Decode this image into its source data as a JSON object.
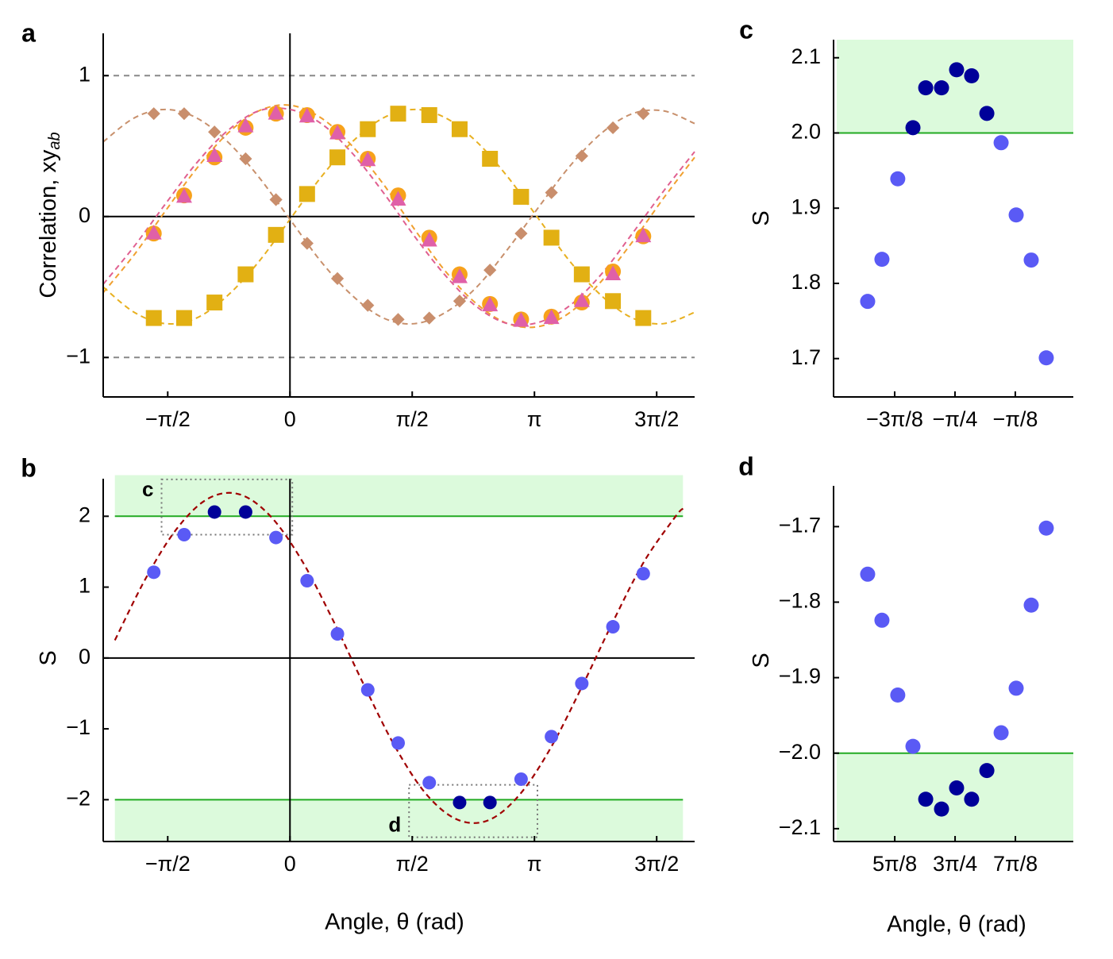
{
  "chart_data": [
    {
      "type": "scatter",
      "label": "a",
      "ylabel": "Correlation, xy",
      "ylabel_subscript": "ab",
      "xlim": [
        -2.4,
        5.2
      ],
      "ylim": [
        -1.28,
        1.3
      ],
      "xticks": [
        {
          "value": -1.5708,
          "label": "−π/2"
        },
        0,
        {
          "value": 1.5708,
          "label": "π/2"
        },
        {
          "value": 3.1416,
          "label": "π"
        },
        {
          "value": 4.7124,
          "label": "3π/2"
        }
      ],
      "yticks": [
        {
          "value": -1,
          "label": "−1"
        },
        0,
        1
      ],
      "zero_lines": true,
      "hlines": [
        {
          "y": 1,
          "color": "#888888",
          "dashed": true
        },
        {
          "y": -1,
          "color": "#888888",
          "dashed": true
        }
      ],
      "x": [
        -1.75,
        -1.36,
        -0.97,
        -0.57,
        -0.18,
        0.22,
        0.61,
        1.0,
        1.39,
        1.79,
        2.18,
        2.57,
        2.97,
        3.36,
        3.75,
        4.15,
        4.54
      ],
      "series": [
        {
          "marker": "circle",
          "color": "#f7a21b",
          "values": [
            -0.12,
            0.15,
            0.42,
            0.63,
            0.73,
            0.72,
            0.6,
            0.41,
            0.15,
            -0.15,
            -0.41,
            -0.62,
            -0.73,
            -0.71,
            -0.61,
            -0.39,
            -0.14
          ]
        },
        {
          "marker": "triangle",
          "color": "#e060a8",
          "values": [
            -0.12,
            0.14,
            0.43,
            0.64,
            0.73,
            0.71,
            0.59,
            0.4,
            0.12,
            -0.17,
            -0.43,
            -0.63,
            -0.74,
            -0.72,
            -0.6,
            -0.41,
            -0.14
          ]
        },
        {
          "marker": "square",
          "color": "#e2b013",
          "values": [
            -0.72,
            -0.72,
            -0.61,
            -0.41,
            -0.13,
            0.16,
            0.42,
            0.62,
            0.73,
            0.72,
            0.62,
            0.41,
            0.14,
            -0.15,
            -0.41,
            -0.6,
            -0.72
          ]
        },
        {
          "marker": "diamond",
          "color": "#c98e6c",
          "values": [
            0.73,
            0.73,
            0.6,
            0.41,
            0.12,
            -0.19,
            -0.44,
            -0.63,
            -0.73,
            -0.72,
            -0.6,
            -0.38,
            -0.12,
            0.17,
            0.43,
            0.63,
            0.73
          ]
        }
      ],
      "fit_x": [
        -2.4,
        -2.0,
        -1.6,
        -1.2,
        -0.8,
        -0.4,
        0,
        0.4,
        0.8,
        1.2,
        1.6,
        2.0,
        2.4,
        2.8,
        3.2,
        3.6,
        4.0,
        4.4,
        4.8,
        5.2
      ],
      "fits": [
        {
          "color": "#f0a030",
          "values": [
            -0.54,
            -0.27,
            0.04,
            0.34,
            0.59,
            0.75,
            0.79,
            0.7,
            0.5,
            0.23,
            -0.09,
            -0.39,
            -0.62,
            -0.76,
            -0.78,
            -0.68,
            -0.46,
            -0.18,
            0.13,
            0.42
          ]
        },
        {
          "color": "#e06090",
          "values": [
            -0.48,
            -0.21,
            0.09,
            0.38,
            0.61,
            0.75,
            0.76,
            0.66,
            0.45,
            0.17,
            -0.14,
            -0.42,
            -0.64,
            -0.76,
            -0.75,
            -0.63,
            -0.41,
            -0.12,
            0.18,
            0.46
          ]
        },
        {
          "color": "#e8b020",
          "values": [
            -0.5,
            -0.68,
            -0.76,
            -0.72,
            -0.56,
            -0.32,
            -0.02,
            0.28,
            0.53,
            0.7,
            0.76,
            0.7,
            0.53,
            0.28,
            -0.02,
            -0.32,
            -0.56,
            -0.72,
            -0.76,
            -0.68
          ]
        },
        {
          "color": "#c8906c",
          "values": [
            0.53,
            0.7,
            0.76,
            0.7,
            0.53,
            0.28,
            -0.02,
            -0.32,
            -0.56,
            -0.72,
            -0.76,
            -0.68,
            -0.5,
            -0.23,
            0.07,
            0.36,
            0.59,
            0.73,
            0.75,
            0.66
          ]
        }
      ]
    },
    {
      "type": "scatter",
      "label": "b",
      "ylabel": "S",
      "xlabel": "Angle, θ (rad)",
      "xlim": [
        -2.4,
        5.2
      ],
      "ylim": [
        -2.59,
        2.53
      ],
      "xticks": [
        {
          "value": -1.5708,
          "label": "−π/2"
        },
        0,
        {
          "value": 1.5708,
          "label": "π/2"
        },
        {
          "value": 3.1416,
          "label": "π"
        },
        {
          "value": 4.7124,
          "label": "3π/2"
        }
      ],
      "yticks": [
        {
          "value": -2,
          "label": "−2"
        },
        {
          "value": -1,
          "label": "−1"
        },
        0,
        1,
        2
      ],
      "zero_lines": true,
      "bands": [
        {
          "color": "#dcfadc",
          "x": [
            -2.25,
            5.05
          ],
          "y": [
            2,
            2.58
          ]
        },
        {
          "color": "#dcfadc",
          "x": [
            -2.25,
            5.05
          ],
          "y": [
            -2.6,
            -2
          ]
        }
      ],
      "hlines": [
        {
          "y": 2,
          "color": "#22aa22",
          "dashed": false,
          "x": [
            -2.25,
            5.05
          ]
        },
        {
          "y": -2,
          "color": "#22aa22",
          "dashed": false,
          "x": [
            -2.25,
            5.05
          ]
        }
      ],
      "insets": [
        {
          "label": "c",
          "x": [
            -1.65,
            0.03
          ],
          "y": [
            1.74,
            2.52
          ]
        },
        {
          "label": "d",
          "x": [
            1.53,
            3.18
          ],
          "y": [
            -2.53,
            -1.79
          ]
        }
      ],
      "x": [
        -1.75,
        -1.36,
        -0.97,
        -0.57,
        -0.18,
        0.22,
        0.61,
        1.0,
        1.39,
        1.79,
        2.18,
        2.57,
        2.97,
        3.36,
        3.75,
        4.15,
        4.54
      ],
      "values": [
        1.21,
        1.74,
        2.06,
        2.06,
        1.7,
        1.09,
        0.34,
        -0.45,
        -1.2,
        -1.76,
        -2.04,
        -2.04,
        -1.71,
        -1.11,
        -0.36,
        0.44,
        1.19
      ],
      "point_colors": [
        "#5a5af5",
        "#5a5af5",
        "#000099",
        "#000099",
        "#5a5af5",
        "#5a5af5",
        "#5a5af5",
        "#5a5af5",
        "#5a5af5",
        "#5a5af5",
        "#000099",
        "#000099",
        "#5a5af5",
        "#5a5af5",
        "#5a5af5",
        "#5a5af5",
        "#5a5af5"
      ],
      "fit_color": "#a00000",
      "fit_x": [
        -2.25,
        -1.85,
        -1.45,
        -1.05,
        -0.65,
        -0.25,
        0.15,
        0.55,
        0.95,
        1.35,
        1.75,
        2.15,
        2.55,
        2.95,
        3.35,
        3.75,
        4.15,
        4.55,
        4.95,
        5.05
      ],
      "fit_values": [
        0.25,
        1.13,
        1.83,
        2.25,
        2.31,
        2.0,
        1.38,
        0.54,
        -0.38,
        -1.25,
        -1.92,
        -2.28,
        -2.29,
        -1.93,
        -1.27,
        -0.41,
        0.51,
        1.36,
        1.99,
        2.11
      ]
    },
    {
      "type": "scatter",
      "label": "c",
      "ylabel": "S",
      "xlim": [
        -1.576,
        -0.015
      ],
      "ylim": [
        1.649,
        2.124
      ],
      "xticks": [
        {
          "value": -1.1781,
          "label": "−3π/8"
        },
        {
          "value": -0.7854,
          "label": "−π/4"
        },
        {
          "value": -0.3927,
          "label": "−π/8"
        }
      ],
      "yticks": [
        1.7,
        1.8,
        1.9,
        {
          "value": 2.0,
          "label": "2.0"
        },
        2.1
      ],
      "bands": [
        {
          "color": "#dcfadc",
          "y": [
            2.0,
            2.124
          ]
        }
      ],
      "hlines": [
        {
          "y": 2.0,
          "color": "#22aa22",
          "dashed": false
        }
      ],
      "x": [
        -1.354,
        -1.261,
        -1.158,
        -1.059,
        -0.976,
        -0.873,
        -0.775,
        -0.677,
        -0.578,
        -0.485,
        -0.387,
        -0.289,
        -0.191
      ],
      "values": [
        1.776,
        1.832,
        1.939,
        2.007,
        2.06,
        2.06,
        2.084,
        2.076,
        2.026,
        1.987,
        1.891,
        1.831,
        1.701
      ],
      "point_colors": [
        "#5a5af5",
        "#5a5af5",
        "#5a5af5",
        "#000099",
        "#000099",
        "#000099",
        "#000099",
        "#000099",
        "#000099",
        "#5a5af5",
        "#5a5af5",
        "#5a5af5",
        "#5a5af5"
      ]
    },
    {
      "type": "scatter",
      "label": "d",
      "ylabel": "S",
      "xlabel": "Angle, θ (rad)",
      "xlim": [
        1.565,
        3.126
      ],
      "ylim": [
        -2.117,
        -1.646
      ],
      "xticks": [
        {
          "value": 1.9635,
          "label": "5π/8"
        },
        {
          "value": 2.3562,
          "label": "3π/4"
        },
        {
          "value": 2.7489,
          "label": "7π/8"
        }
      ],
      "yticks": [
        {
          "value": -2.1,
          "label": "−2.1"
        },
        {
          "value": -2.0,
          "label": "−2.0"
        },
        {
          "value": -1.9,
          "label": "−1.9"
        },
        {
          "value": -1.8,
          "label": "−1.8"
        },
        {
          "value": -1.7,
          "label": "−1.7"
        }
      ],
      "bands": [
        {
          "color": "#dcfadc",
          "y": [
            -2.117,
            -2.0
          ]
        }
      ],
      "hlines": [
        {
          "y": -2.0,
          "color": "#22aa22",
          "dashed": false
        }
      ],
      "x": [
        1.787,
        1.88,
        1.983,
        2.082,
        2.165,
        2.268,
        2.366,
        2.464,
        2.563,
        2.656,
        2.754,
        2.852,
        2.95
      ],
      "values": [
        -1.763,
        -1.824,
        -1.923,
        -1.991,
        -2.061,
        -2.074,
        -2.046,
        -2.061,
        -2.023,
        -1.973,
        -1.914,
        -1.804,
        -1.702
      ],
      "point_colors": [
        "#5a5af5",
        "#5a5af5",
        "#5a5af5",
        "#5a5af5",
        "#000099",
        "#000099",
        "#000099",
        "#000099",
        "#000099",
        "#5a5af5",
        "#5a5af5",
        "#5a5af5",
        "#5a5af5"
      ]
    }
  ]
}
